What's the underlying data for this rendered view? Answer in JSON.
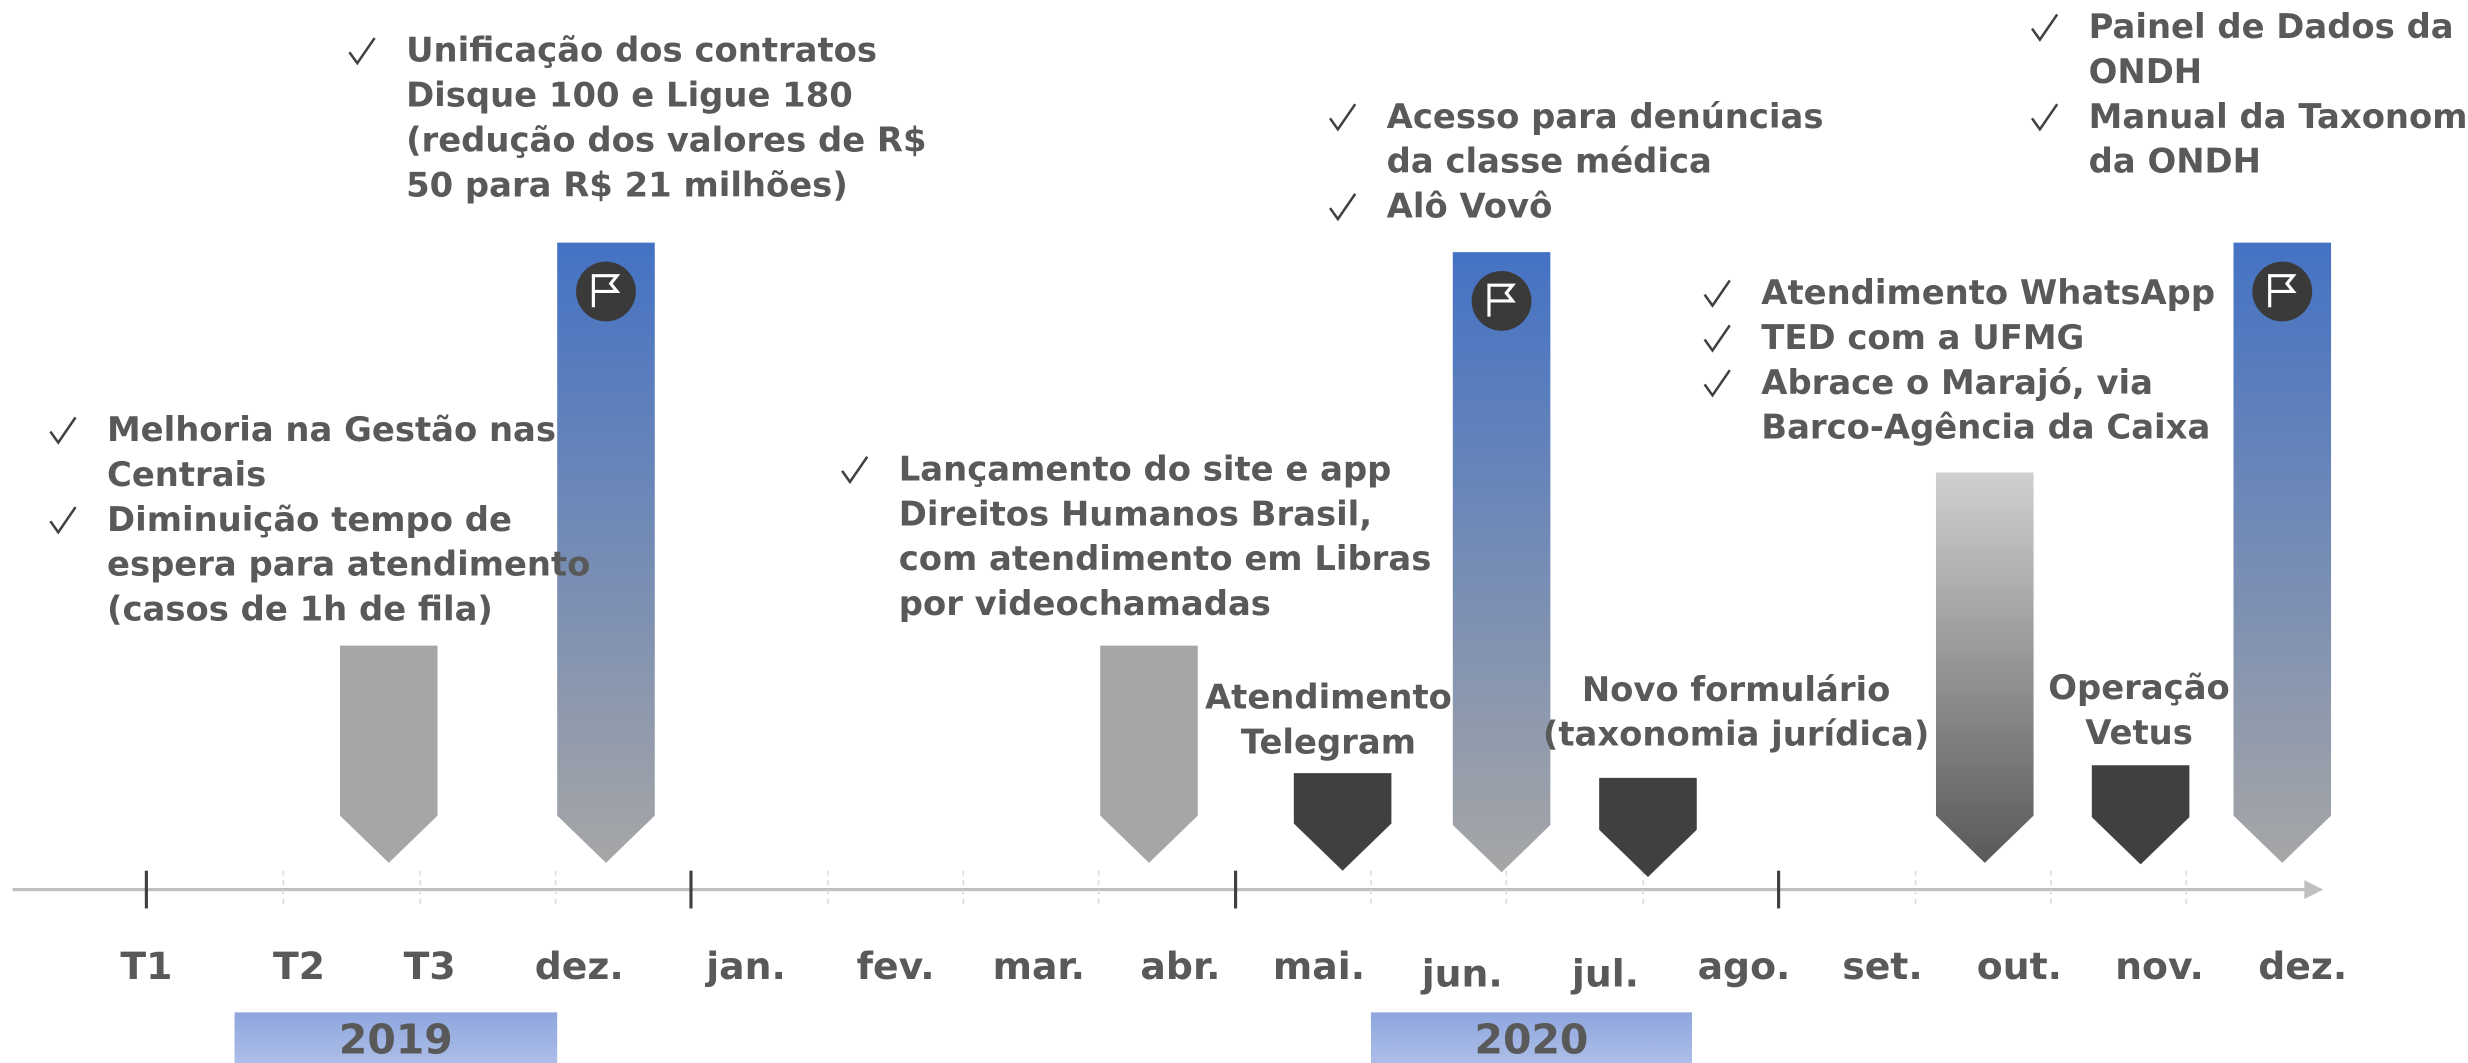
{
  "axis_labels": [
    "T1",
    "T2",
    "T3",
    "dez.",
    "jan.",
    "fev.",
    "mar.",
    "abr.",
    "mai.",
    "jun.",
    "jul.",
    "ago.",
    "set.",
    "out.",
    "nov.",
    "dez."
  ],
  "years": [
    "2019",
    "2020"
  ],
  "notes": [
    {
      "items": [
        [
          "Melhoria na Gestão nas",
          "Centrais"
        ],
        [
          "Diminuição tempo de",
          "espera para atendimento",
          "(casos de 1h de fila)"
        ]
      ]
    },
    {
      "items": [
        [
          "Unificação dos contratos",
          "Disque 100 e Ligue 180",
          "(redução dos valores de R$",
          "50 para R$ 21 milhões)"
        ]
      ]
    },
    {
      "items": [
        [
          "Lançamento do site e app",
          "Direitos Humanos Brasil,",
          "com atendimento em Libras",
          "por videochamadas"
        ]
      ]
    },
    {
      "items": [
        [
          "Acesso para denúncias",
          "da classe médica"
        ],
        [
          "Alô Vovô"
        ]
      ]
    },
    {
      "items": [
        [
          "Atendimento WhatsApp"
        ],
        [
          "TED com a UFMG"
        ],
        [
          "Abrace o Marajó, via",
          "Barco-Agência da Caixa"
        ]
      ]
    },
    {
      "items": [
        [
          "Painel de Dados da",
          "ONDH"
        ],
        [
          "Manual da Taxonomia",
          "da ONDH"
        ]
      ]
    }
  ],
  "captions": [
    [
      "Atendimento",
      "Telegram"
    ],
    [
      "Novo formulário",
      "(taxonomia jurídica)"
    ],
    [
      "Operação",
      "Vetus"
    ]
  ]
}
